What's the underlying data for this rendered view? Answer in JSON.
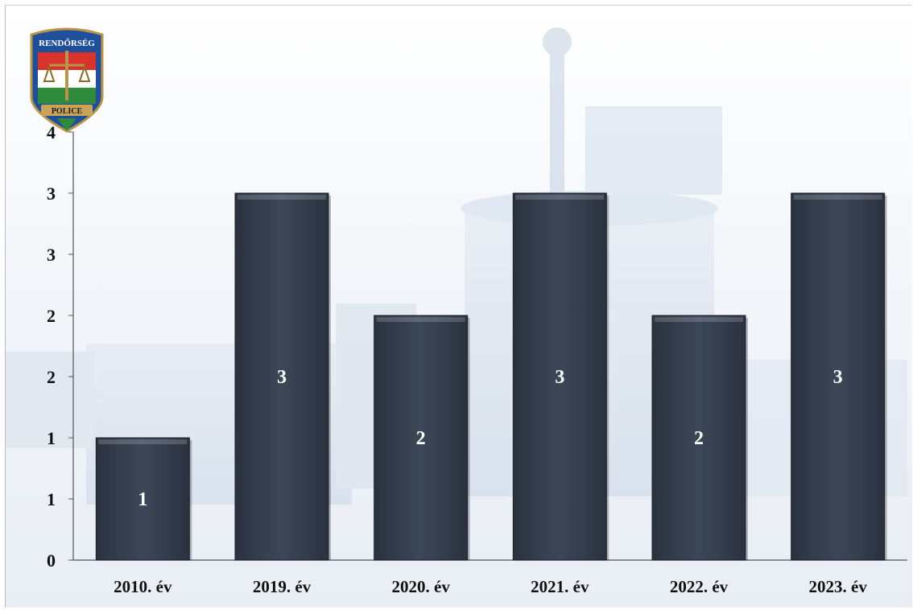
{
  "logo": {
    "top_text": "RENDŐRSÉG",
    "bottom_text": "POLICE"
  },
  "chart_data": {
    "type": "bar",
    "categories": [
      "2010. év",
      "2019. év",
      "2020. év",
      "2021. év",
      "2022. év",
      "2023. év"
    ],
    "values": [
      1,
      3,
      2,
      3,
      2,
      3
    ],
    "data_labels": [
      "1",
      "3",
      "2",
      "3",
      "2",
      "3"
    ],
    "y_tick_labels": [
      "0",
      "1",
      "1",
      "2",
      "2",
      "3",
      "3",
      "4"
    ],
    "y_tick_values": [
      0,
      0.5,
      1,
      1.5,
      2,
      2.5,
      3,
      3.5
    ],
    "ylim": [
      0,
      3.5
    ],
    "title": "",
    "xlabel": "",
    "ylabel": "",
    "grid": false,
    "bar_color": "#36404f"
  }
}
